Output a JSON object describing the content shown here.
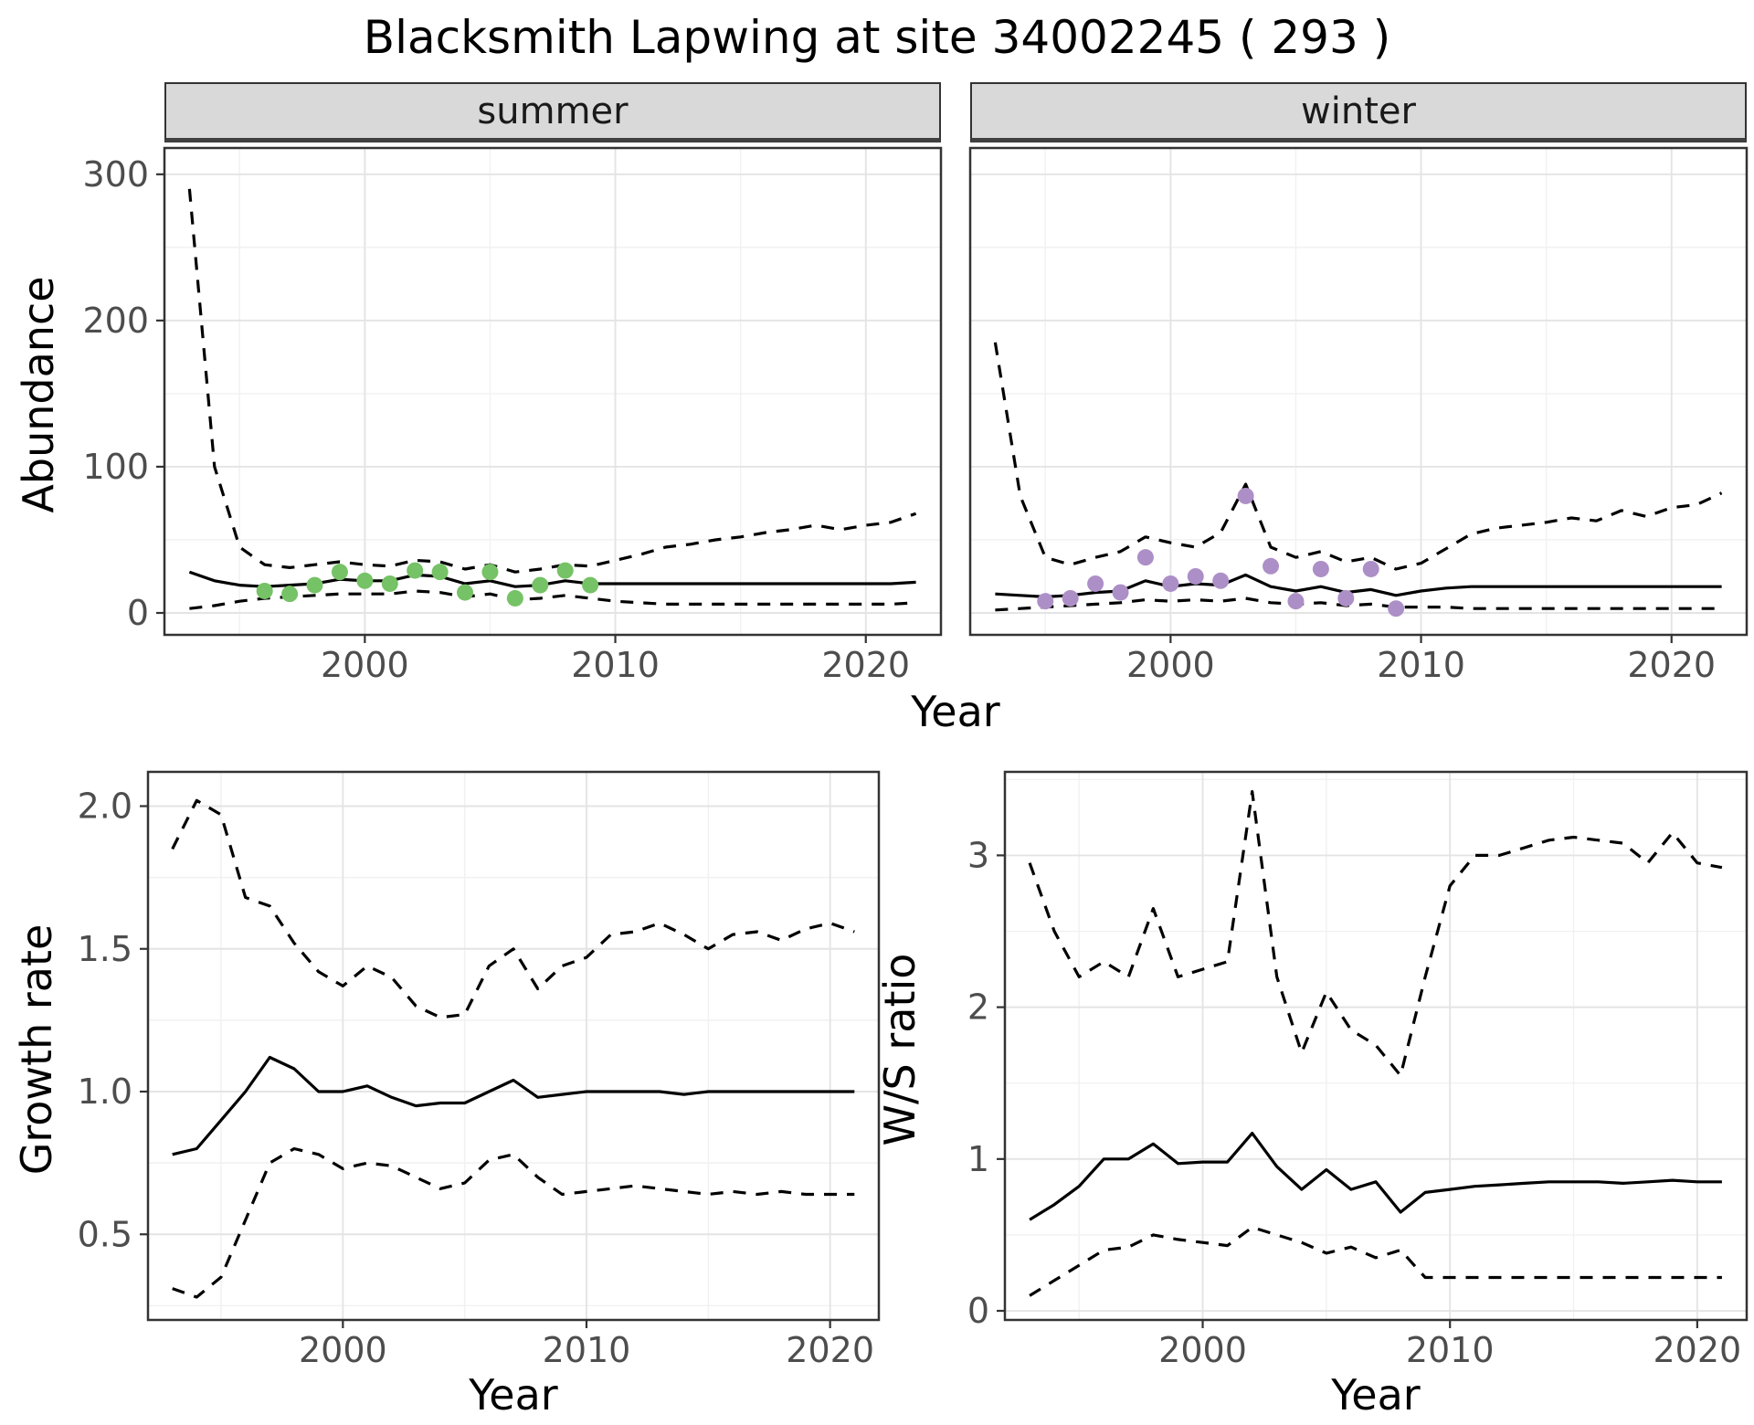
{
  "title": "Blacksmith Lapwing at site 34002245 ( 293 )",
  "facets": {
    "summer": "summer",
    "winter": "winter"
  },
  "axes": {
    "abundance_label": "Abundance",
    "top_x_label": "Year",
    "growth_y_label": "Growth rate",
    "growth_x_label": "Year",
    "ws_y_label": "W/S ratio",
    "ws_x_label": "Year"
  },
  "colors": {
    "summer_points": "#76C266",
    "winter_points": "#AD8FC7",
    "line": "#000000",
    "strip_bg": "#D9D9D9",
    "grid_major": "#E4E4E4",
    "grid_minor": "#F1F1F1",
    "panel_border": "#333333",
    "tick_text": "#4D4D4D"
  },
  "chart_data": [
    {
      "type": "line",
      "title": "summer",
      "xlabel": "Year",
      "ylabel": "Abundance",
      "xlim": [
        1992,
        2023
      ],
      "ylim": [
        -15,
        318
      ],
      "xticks": [
        2000,
        2010,
        2020
      ],
      "xtick_labels": [
        "2000",
        "2010",
        "2020"
      ],
      "yticks": [
        0,
        100,
        200,
        300
      ],
      "ytick_labels": [
        "0",
        "100",
        "200",
        "300"
      ],
      "show_y_tick_labels": true,
      "grid": true,
      "legend": "none",
      "series": [
        {
          "name": "upper_ci",
          "style": "dashed",
          "x": [
            1993,
            1994,
            1995,
            1996,
            1997,
            1998,
            1999,
            2000,
            2001,
            2002,
            2003,
            2004,
            2005,
            2006,
            2007,
            2008,
            2009,
            2010,
            2011,
            2012,
            2013,
            2014,
            2015,
            2016,
            2017,
            2018,
            2019,
            2020,
            2021,
            2022
          ],
          "y": [
            290,
            100,
            45,
            33,
            31,
            33,
            35,
            33,
            32,
            36,
            35,
            30,
            33,
            28,
            30,
            33,
            32,
            36,
            40,
            45,
            47,
            50,
            52,
            55,
            57,
            60,
            57,
            60,
            62,
            68
          ]
        },
        {
          "name": "median",
          "style": "solid",
          "x": [
            1993,
            1994,
            1995,
            1996,
            1997,
            1998,
            1999,
            2000,
            2001,
            2002,
            2003,
            2004,
            2005,
            2006,
            2007,
            2008,
            2009,
            2010,
            2011,
            2012,
            2013,
            2014,
            2015,
            2016,
            2017,
            2018,
            2019,
            2020,
            2021,
            2022
          ],
          "y": [
            28,
            22,
            19,
            18,
            19,
            20,
            23,
            22,
            22,
            26,
            25,
            20,
            22,
            18,
            19,
            22,
            20,
            20,
            20,
            20,
            20,
            20,
            20,
            20,
            20,
            20,
            20,
            20,
            20,
            21
          ]
        },
        {
          "name": "lower_ci",
          "style": "dashed",
          "x": [
            1993,
            1994,
            1995,
            1996,
            1997,
            1998,
            1999,
            2000,
            2001,
            2002,
            2003,
            2004,
            2005,
            2006,
            2007,
            2008,
            2009,
            2010,
            2011,
            2012,
            2013,
            2014,
            2015,
            2016,
            2017,
            2018,
            2019,
            2020,
            2021,
            2022
          ],
          "y": [
            3,
            5,
            8,
            10,
            11,
            12,
            13,
            13,
            13,
            15,
            14,
            11,
            13,
            9,
            10,
            12,
            10,
            8,
            7,
            6,
            6,
            6,
            6,
            6,
            6,
            6,
            6,
            6,
            6,
            7
          ]
        },
        {
          "name": "observed_counts",
          "style": "points",
          "color": "#76C266",
          "x": [
            1996,
            1997,
            1998,
            1999,
            2000,
            2001,
            2002,
            2003,
            2004,
            2005,
            2006,
            2007,
            2008,
            2009
          ],
          "y": [
            15,
            13,
            19,
            28,
            22,
            20,
            29,
            28,
            14,
            28,
            10,
            19,
            29,
            19
          ]
        }
      ]
    },
    {
      "type": "line",
      "title": "winter",
      "xlabel": "Year",
      "ylabel": "Abundance",
      "xlim": [
        1992,
        2023
      ],
      "ylim": [
        -15,
        318
      ],
      "xticks": [
        2000,
        2010,
        2020
      ],
      "xtick_labels": [
        "2000",
        "2010",
        "2020"
      ],
      "yticks": [
        0,
        100,
        200,
        300
      ],
      "ytick_labels": [
        "0",
        "100",
        "200",
        "300"
      ],
      "show_y_tick_labels": false,
      "grid": true,
      "legend": "none",
      "series": [
        {
          "name": "upper_ci",
          "style": "dashed",
          "x": [
            1993,
            1994,
            1995,
            1996,
            1997,
            1998,
            1999,
            2000,
            2001,
            2002,
            2003,
            2004,
            2005,
            2006,
            2007,
            2008,
            2009,
            2010,
            2011,
            2012,
            2013,
            2014,
            2015,
            2016,
            2017,
            2018,
            2019,
            2020,
            2021,
            2022
          ],
          "y": [
            185,
            80,
            38,
            33,
            38,
            42,
            52,
            48,
            45,
            55,
            88,
            45,
            38,
            42,
            35,
            38,
            30,
            34,
            44,
            54,
            58,
            60,
            62,
            65,
            63,
            70,
            66,
            72,
            74,
            82
          ]
        },
        {
          "name": "median",
          "style": "solid",
          "x": [
            1993,
            1994,
            1995,
            1996,
            1997,
            1998,
            1999,
            2000,
            2001,
            2002,
            2003,
            2004,
            2005,
            2006,
            2007,
            2008,
            2009,
            2010,
            2011,
            2012,
            2013,
            2014,
            2015,
            2016,
            2017,
            2018,
            2019,
            2020,
            2021,
            2022
          ],
          "y": [
            13,
            12,
            11,
            12,
            14,
            15,
            22,
            18,
            20,
            19,
            26,
            18,
            15,
            18,
            14,
            16,
            12,
            15,
            17,
            18,
            18,
            18,
            18,
            18,
            18,
            18,
            18,
            18,
            18,
            18
          ]
        },
        {
          "name": "lower_ci",
          "style": "dashed",
          "x": [
            1993,
            1994,
            1995,
            1996,
            1997,
            1998,
            1999,
            2000,
            2001,
            2002,
            2003,
            2004,
            2005,
            2006,
            2007,
            2008,
            2009,
            2010,
            2011,
            2012,
            2013,
            2014,
            2015,
            2016,
            2017,
            2018,
            2019,
            2020,
            2021,
            2022
          ],
          "y": [
            2,
            3,
            4,
            5,
            6,
            7,
            9,
            8,
            9,
            8,
            10,
            7,
            6,
            7,
            5,
            6,
            4,
            4,
            4,
            3,
            3,
            3,
            3,
            3,
            3,
            3,
            3,
            3,
            3,
            3
          ]
        },
        {
          "name": "observed_counts",
          "style": "points",
          "color": "#AD8FC7",
          "x": [
            1995,
            1996,
            1997,
            1998,
            1999,
            2000,
            2001,
            2002,
            2003,
            2004,
            2005,
            2006,
            2007,
            2008,
            2009
          ],
          "y": [
            8,
            10,
            20,
            14,
            38,
            20,
            25,
            22,
            80,
            32,
            8,
            30,
            10,
            30,
            3
          ]
        }
      ]
    },
    {
      "type": "line",
      "title": "Growth rate",
      "xlabel": "Year",
      "ylabel": "Growth rate",
      "xlim": [
        1992,
        2022
      ],
      "ylim": [
        0.2,
        2.12
      ],
      "xticks": [
        2000,
        2010,
        2020
      ],
      "xtick_labels": [
        "2000",
        "2010",
        "2020"
      ],
      "yticks": [
        0.5,
        1.0,
        1.5,
        2.0
      ],
      "ytick_labels": [
        "0.5",
        "1.0",
        "1.5",
        "2.0"
      ],
      "show_y_tick_labels": true,
      "grid": true,
      "legend": "none",
      "series": [
        {
          "name": "upper_ci",
          "style": "dashed",
          "x": [
            1993,
            1994,
            1995,
            1996,
            1997,
            1998,
            1999,
            2000,
            2001,
            2002,
            2003,
            2004,
            2005,
            2006,
            2007,
            2008,
            2009,
            2010,
            2011,
            2012,
            2013,
            2014,
            2015,
            2016,
            2017,
            2018,
            2019,
            2020,
            2021
          ],
          "y": [
            1.85,
            2.02,
            1.97,
            1.68,
            1.65,
            1.52,
            1.42,
            1.37,
            1.44,
            1.4,
            1.3,
            1.26,
            1.27,
            1.44,
            1.5,
            1.36,
            1.44,
            1.47,
            1.55,
            1.56,
            1.59,
            1.55,
            1.5,
            1.55,
            1.56,
            1.53,
            1.57,
            1.59,
            1.56
          ]
        },
        {
          "name": "median",
          "style": "solid",
          "x": [
            1993,
            1994,
            1995,
            1996,
            1997,
            1998,
            1999,
            2000,
            2001,
            2002,
            2003,
            2004,
            2005,
            2006,
            2007,
            2008,
            2009,
            2010,
            2011,
            2012,
            2013,
            2014,
            2015,
            2016,
            2017,
            2018,
            2019,
            2020,
            2021
          ],
          "y": [
            0.78,
            0.8,
            0.9,
            1.0,
            1.12,
            1.08,
            1.0,
            1.0,
            1.02,
            0.98,
            0.95,
            0.96,
            0.96,
            1.0,
            1.04,
            0.98,
            0.99,
            1.0,
            1.0,
            1.0,
            1.0,
            0.99,
            1.0,
            1.0,
            1.0,
            1.0,
            1.0,
            1.0,
            1.0
          ]
        },
        {
          "name": "lower_ci",
          "style": "dashed",
          "x": [
            1993,
            1994,
            1995,
            1996,
            1997,
            1998,
            1999,
            2000,
            2001,
            2002,
            2003,
            2004,
            2005,
            2006,
            2007,
            2008,
            2009,
            2010,
            2011,
            2012,
            2013,
            2014,
            2015,
            2016,
            2017,
            2018,
            2019,
            2020,
            2021
          ],
          "y": [
            0.31,
            0.28,
            0.35,
            0.55,
            0.75,
            0.8,
            0.78,
            0.73,
            0.75,
            0.74,
            0.7,
            0.66,
            0.68,
            0.76,
            0.78,
            0.7,
            0.64,
            0.65,
            0.66,
            0.67,
            0.66,
            0.65,
            0.64,
            0.65,
            0.64,
            0.65,
            0.64,
            0.64,
            0.64
          ]
        }
      ]
    },
    {
      "type": "line",
      "title": "W/S ratio",
      "xlabel": "Year",
      "ylabel": "W/S ratio",
      "xlim": [
        1992,
        2022
      ],
      "ylim": [
        -0.06,
        3.55
      ],
      "xticks": [
        2000,
        2010,
        2020
      ],
      "xtick_labels": [
        "2000",
        "2010",
        "2020"
      ],
      "yticks": [
        0,
        1,
        2,
        3
      ],
      "ytick_labels": [
        "0",
        "1",
        "2",
        "3"
      ],
      "show_y_tick_labels": true,
      "grid": true,
      "legend": "none",
      "series": [
        {
          "name": "upper_ci",
          "style": "dashed",
          "x": [
            1993,
            1994,
            1995,
            1996,
            1997,
            1998,
            1999,
            2000,
            2001,
            2002,
            2003,
            2004,
            2005,
            2006,
            2007,
            2008,
            2009,
            2010,
            2011,
            2012,
            2013,
            2014,
            2015,
            2016,
            2017,
            2018,
            2019,
            2020,
            2021
          ],
          "y": [
            2.95,
            2.5,
            2.2,
            2.3,
            2.2,
            2.65,
            2.2,
            2.25,
            2.3,
            3.42,
            2.2,
            1.7,
            2.1,
            1.85,
            1.75,
            1.55,
            2.2,
            2.8,
            3.0,
            3.0,
            3.05,
            3.1,
            3.12,
            3.1,
            3.08,
            2.95,
            3.15,
            2.95,
            2.92
          ]
        },
        {
          "name": "median",
          "style": "solid",
          "x": [
            1993,
            1994,
            1995,
            1996,
            1997,
            1998,
            1999,
            2000,
            2001,
            2002,
            2003,
            2004,
            2005,
            2006,
            2007,
            2008,
            2009,
            2010,
            2011,
            2012,
            2013,
            2014,
            2015,
            2016,
            2017,
            2018,
            2019,
            2020,
            2021
          ],
          "y": [
            0.6,
            0.7,
            0.82,
            1.0,
            1.0,
            1.1,
            0.97,
            0.98,
            0.98,
            1.17,
            0.95,
            0.8,
            0.93,
            0.8,
            0.85,
            0.65,
            0.78,
            0.8,
            0.82,
            0.83,
            0.84,
            0.85,
            0.85,
            0.85,
            0.84,
            0.85,
            0.86,
            0.85,
            0.85
          ]
        },
        {
          "name": "lower_ci",
          "style": "dashed",
          "x": [
            1993,
            1994,
            1995,
            1996,
            1997,
            1998,
            1999,
            2000,
            2001,
            2002,
            2003,
            2004,
            2005,
            2006,
            2007,
            2008,
            2009,
            2010,
            2011,
            2012,
            2013,
            2014,
            2015,
            2016,
            2017,
            2018,
            2019,
            2020,
            2021
          ],
          "y": [
            0.1,
            0.2,
            0.3,
            0.4,
            0.42,
            0.5,
            0.47,
            0.45,
            0.43,
            0.55,
            0.5,
            0.45,
            0.38,
            0.42,
            0.35,
            0.4,
            0.22,
            0.22,
            0.22,
            0.22,
            0.22,
            0.22,
            0.22,
            0.22,
            0.22,
            0.22,
            0.22,
            0.22,
            0.22
          ]
        }
      ]
    }
  ]
}
